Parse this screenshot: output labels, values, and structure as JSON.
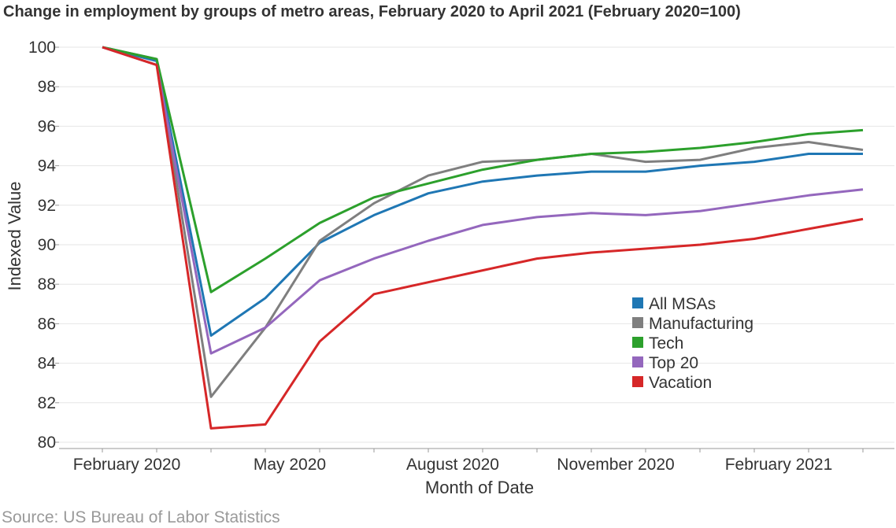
{
  "title": "Change in employment by groups of metro areas, February 2020 to April 2021 (February 2020=100)",
  "source": "Source: US Bureau of Labor Statistics",
  "chart_data": {
    "type": "line",
    "title": "Change in employment by groups of metro areas, February 2020 to April 2021 (February 2020=100)",
    "xlabel": "Month of Date",
    "ylabel": "Indexed Value",
    "ylim": [
      80,
      100
    ],
    "yticks": [
      80,
      82,
      84,
      86,
      88,
      90,
      92,
      94,
      96,
      98,
      100
    ],
    "x": [
      "2020-02",
      "2020-03",
      "2020-04",
      "2020-05",
      "2020-06",
      "2020-07",
      "2020-08",
      "2020-09",
      "2020-10",
      "2020-11",
      "2020-12",
      "2021-01",
      "2021-02",
      "2021-03",
      "2021-04"
    ],
    "xticks": [
      {
        "x": "2020-02",
        "label": "February 2020"
      },
      {
        "x": "2020-05",
        "label": "May 2020"
      },
      {
        "x": "2020-08",
        "label": "August 2020"
      },
      {
        "x": "2020-11",
        "label": "November 2020"
      },
      {
        "x": "2021-02",
        "label": "February 2021"
      }
    ],
    "grid": true,
    "legend_position": "right",
    "series": [
      {
        "name": "All MSAs",
        "color": "#1f77b4",
        "values": [
          100.0,
          99.3,
          85.4,
          87.3,
          90.1,
          91.5,
          92.6,
          93.2,
          93.5,
          93.7,
          93.7,
          94.0,
          94.2,
          94.6,
          94.6
        ]
      },
      {
        "name": "Manufacturing",
        "color": "#7f7f7f",
        "values": [
          100.0,
          99.4,
          82.3,
          85.8,
          90.2,
          92.1,
          93.5,
          94.2,
          94.3,
          94.6,
          94.2,
          94.3,
          94.9,
          95.2,
          94.8
        ]
      },
      {
        "name": "Tech",
        "color": "#2ca02c",
        "values": [
          100.0,
          99.4,
          87.6,
          89.3,
          91.1,
          92.4,
          93.1,
          93.8,
          94.3,
          94.6,
          94.7,
          94.9,
          95.2,
          95.6,
          95.8
        ]
      },
      {
        "name": "Top 20",
        "color": "#9467bd",
        "values": [
          100.0,
          99.1,
          84.5,
          85.8,
          88.2,
          89.3,
          90.2,
          91.0,
          91.4,
          91.6,
          91.5,
          91.7,
          92.1,
          92.5,
          92.8
        ]
      },
      {
        "name": "Vacation",
        "color": "#d62728",
        "values": [
          100.0,
          99.1,
          80.7,
          80.9,
          85.1,
          87.5,
          88.1,
          88.7,
          89.3,
          89.6,
          89.8,
          90.0,
          90.3,
          90.8,
          91.3
        ]
      }
    ]
  }
}
